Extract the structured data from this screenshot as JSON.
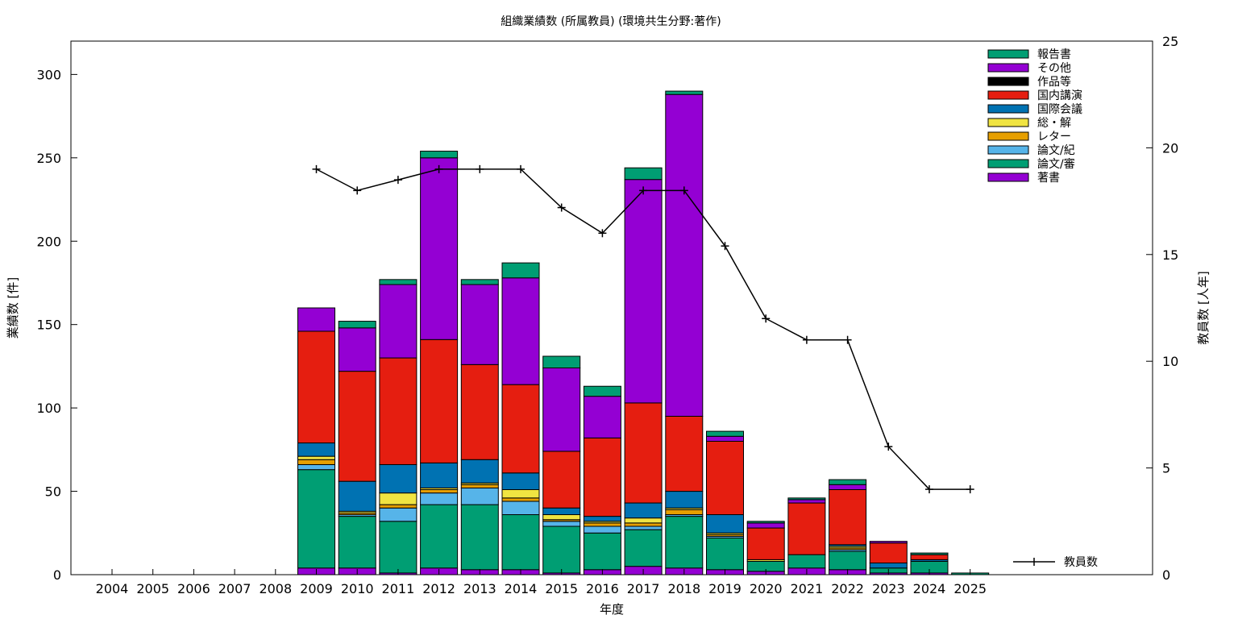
{
  "chart_data": {
    "type": "bar",
    "stacked": true,
    "title": "組織業績数 (所属教員) (環境共生分野:著作)",
    "xlabel": "年度",
    "ylabel": "業績数 [件]",
    "y2label": "教員数 [人年]",
    "ylim": [
      0,
      320
    ],
    "y2lim": [
      0,
      25
    ],
    "yticks": [
      0,
      50,
      100,
      150,
      200,
      250,
      300
    ],
    "y2ticks": [
      0,
      5,
      10,
      15,
      20,
      25
    ],
    "legend_position": "top-right",
    "grid": false,
    "categories": [
      "2004",
      "2005",
      "2006",
      "2007",
      "2008",
      "2009",
      "2010",
      "2011",
      "2012",
      "2013",
      "2014",
      "2015",
      "2016",
      "2017",
      "2018",
      "2019",
      "2020",
      "2021",
      "2022",
      "2023",
      "2024",
      "2025"
    ],
    "series": [
      {
        "name": "著書",
        "color": "#9400d3",
        "values": [
          0,
          0,
          0,
          0,
          0,
          4,
          4,
          1,
          4,
          3,
          3,
          1,
          3,
          5,
          4,
          3,
          2,
          4,
          3,
          1,
          1,
          0
        ]
      },
      {
        "name": "論文/審",
        "color": "#009e73",
        "values": [
          0,
          0,
          0,
          0,
          0,
          59,
          31,
          31,
          38,
          39,
          33,
          28,
          22,
          22,
          31,
          19,
          6,
          8,
          11,
          3,
          7,
          1
        ]
      },
      {
        "name": "論文/紀",
        "color": "#56b4e9",
        "values": [
          0,
          0,
          0,
          0,
          0,
          3,
          1,
          8,
          7,
          10,
          8,
          3,
          4,
          2,
          1,
          1,
          0,
          0,
          1,
          0,
          0,
          0
        ]
      },
      {
        "name": "レター",
        "color": "#e69f00",
        "values": [
          0,
          0,
          0,
          0,
          0,
          3,
          1,
          2,
          2,
          2,
          2,
          1,
          2,
          2,
          3,
          1,
          0,
          0,
          1,
          0,
          0,
          0
        ]
      },
      {
        "name": "総・解",
        "color": "#f0e442",
        "values": [
          0,
          0,
          0,
          0,
          0,
          2,
          1,
          7,
          1,
          1,
          5,
          3,
          1,
          3,
          1,
          1,
          1,
          0,
          1,
          0,
          0,
          0
        ]
      },
      {
        "name": "国際会議",
        "color": "#0072b2",
        "values": [
          0,
          0,
          0,
          0,
          0,
          8,
          18,
          17,
          15,
          14,
          10,
          4,
          3,
          9,
          10,
          11,
          0,
          0,
          1,
          3,
          1,
          0
        ]
      },
      {
        "name": "国内講演",
        "color": "#e51e10",
        "values": [
          0,
          0,
          0,
          0,
          0,
          67,
          66,
          64,
          74,
          57,
          53,
          34,
          47,
          60,
          45,
          44,
          19,
          31,
          33,
          12,
          3,
          0
        ]
      },
      {
        "name": "作品等",
        "color": "#000000",
        "values": [
          0,
          0,
          0,
          0,
          0,
          0,
          0,
          0,
          0,
          0,
          0,
          0,
          0,
          0,
          0,
          0,
          0,
          0,
          0,
          0,
          0,
          0
        ]
      },
      {
        "name": "その他",
        "color": "#9400d3",
        "values": [
          0,
          0,
          0,
          0,
          0,
          14,
          26,
          44,
          109,
          48,
          64,
          50,
          25,
          134,
          193,
          3,
          3,
          2,
          3,
          1,
          0,
          0
        ]
      },
      {
        "name": "報告書",
        "color": "#009e73",
        "values": [
          0,
          0,
          0,
          0,
          0,
          0,
          4,
          3,
          4,
          3,
          9,
          7,
          6,
          7,
          2,
          3,
          1,
          1,
          3,
          0,
          1,
          0
        ]
      }
    ],
    "line_series": {
      "name": "教員数",
      "axis": "y2",
      "color": "#000000",
      "x": [
        "2009",
        "2010",
        "2011",
        "2012",
        "2013",
        "2014",
        "2015",
        "2016",
        "2017",
        "2018",
        "2019",
        "2020",
        "2021",
        "2022",
        "2023",
        "2024",
        "2025"
      ],
      "values": [
        19,
        18,
        18.5,
        19,
        19,
        19,
        17.2,
        16,
        18,
        18,
        15.4,
        12,
        11,
        11,
        6,
        4,
        4
      ]
    }
  }
}
